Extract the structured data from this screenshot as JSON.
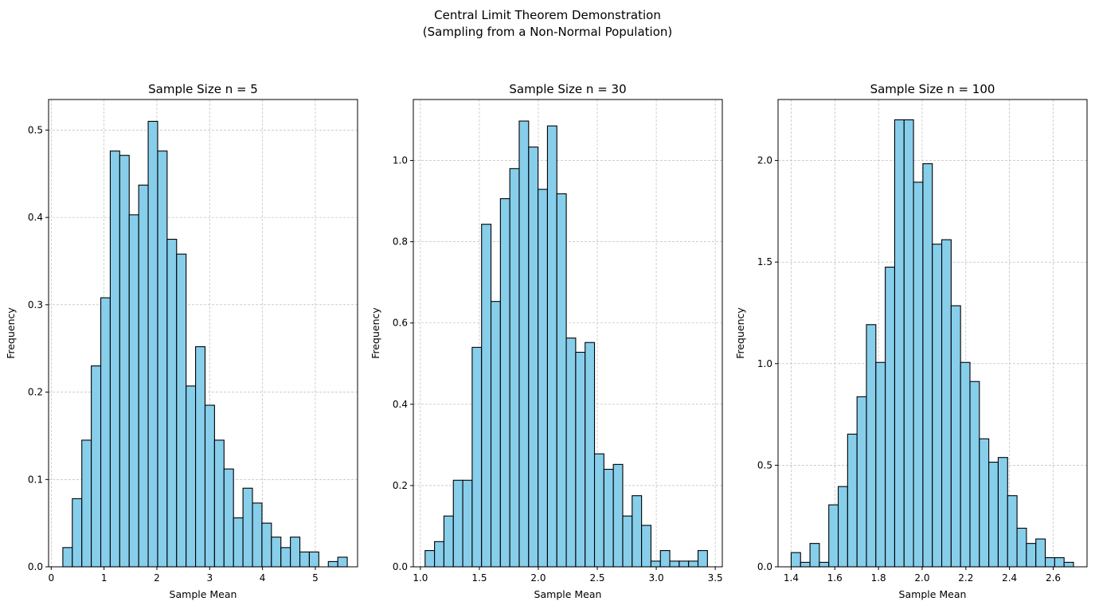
{
  "figure": {
    "title_line1": "Central Limit Theorem Demonstration",
    "title_line2": "(Sampling from a Non-Normal Population)"
  },
  "colors": {
    "bar_fill": "#87CEEB",
    "bar_edge": "#000000",
    "grid": "#b0b0b0"
  },
  "chart_data": [
    {
      "type": "bar",
      "subtype": "histogram",
      "title": "Sample Size n = 5",
      "xlabel": "Sample Mean",
      "ylabel": "Frequency",
      "xlim": [
        -0.05,
        5.8
      ],
      "ylim": [
        0,
        0.535
      ],
      "xticks": [
        0,
        1,
        2,
        3,
        4,
        5
      ],
      "yticks": [
        0.0,
        0.1,
        0.2,
        0.3,
        0.4,
        0.5
      ],
      "ytick_labels": [
        "0.0",
        "0.1",
        "0.2",
        "0.3",
        "0.4",
        "0.5"
      ],
      "grid": true,
      "bin_start": 0.22,
      "bin_width": 0.1795,
      "values": [
        0.022,
        0.078,
        0.145,
        0.23,
        0.308,
        0.476,
        0.471,
        0.403,
        0.437,
        0.51,
        0.476,
        0.375,
        0.358,
        0.207,
        0.252,
        0.185,
        0.145,
        0.112,
        0.056,
        0.09,
        0.073,
        0.05,
        0.034,
        0.022,
        0.034,
        0.017,
        0.017,
        0.0,
        0.006,
        0.011
      ]
    },
    {
      "type": "bar",
      "subtype": "histogram",
      "title": "Sample Size n = 30",
      "xlabel": "Sample Mean",
      "ylabel": "Frequency",
      "xlim": [
        0.94,
        3.56
      ],
      "ylim": [
        0,
        1.15
      ],
      "xticks": [
        1.0,
        1.5,
        2.0,
        2.5,
        3.0,
        3.5
      ],
      "ytick_labels": [
        "0.0",
        "0.2",
        "0.4",
        "0.6",
        "0.8",
        "1.0"
      ],
      "yticks": [
        0.0,
        0.2,
        0.4,
        0.6,
        0.8,
        1.0
      ],
      "grid": true,
      "bin_start": 1.04,
      "bin_width": 0.0798,
      "values": [
        0.04,
        0.062,
        0.125,
        0.213,
        0.213,
        0.54,
        0.843,
        0.653,
        0.906,
        0.98,
        1.097,
        1.033,
        0.929,
        1.085,
        0.918,
        0.563,
        0.528,
        0.552,
        0.278,
        0.24,
        0.252,
        0.125,
        0.175,
        0.102,
        0.014,
        0.04,
        0.014,
        0.014,
        0.014,
        0.04
      ]
    },
    {
      "type": "bar",
      "subtype": "histogram",
      "title": "Sample Size n = 100",
      "xlabel": "Sample Mean",
      "ylabel": "Frequency",
      "xlim": [
        1.34,
        2.755
      ],
      "ylim": [
        0,
        2.3
      ],
      "xticks": [
        1.4,
        1.6,
        1.8,
        2.0,
        2.2,
        2.4,
        2.6
      ],
      "ytick_labels": [
        "0.0",
        "0.5",
        "1.0",
        "1.5",
        "2.0"
      ],
      "yticks": [
        0.0,
        0.5,
        1.0,
        1.5,
        2.0
      ],
      "grid": true,
      "bin_start": 1.4,
      "bin_width": 0.0431,
      "values": [
        0.07,
        0.022,
        0.115,
        0.022,
        0.305,
        0.395,
        0.653,
        0.837,
        1.192,
        1.006,
        1.475,
        2.2,
        2.2,
        1.893,
        1.984,
        1.588,
        1.61,
        1.285,
        1.006,
        0.912,
        0.63,
        0.515,
        0.538,
        0.35,
        0.19,
        0.115,
        0.137,
        0.045,
        0.045,
        0.022
      ]
    }
  ]
}
